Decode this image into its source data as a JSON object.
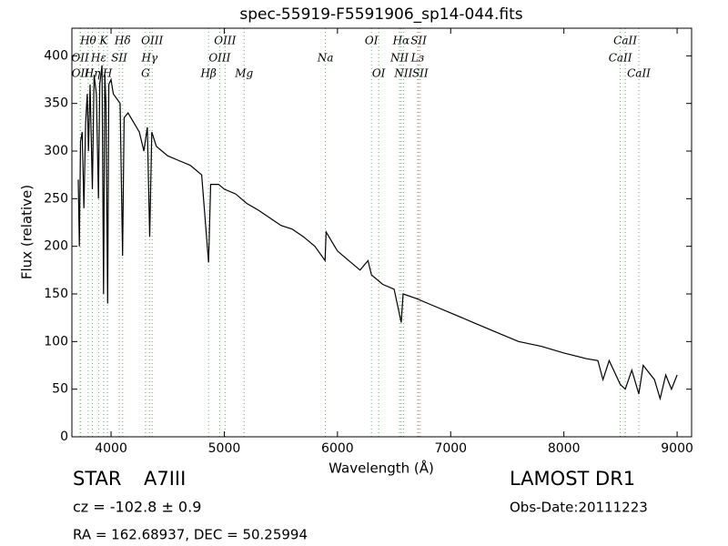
{
  "chart_data": {
    "type": "line",
    "title": "spec-55919-F5591906_sp14-044.fits",
    "xlabel": "Wavelength (Å)",
    "ylabel": "Flux (relative)",
    "color": "#000000",
    "line_color": "#5cb85c",
    "xlim": [
      3654,
      9128
    ],
    "ylim": [
      0,
      429
    ],
    "xticks": [
      4000,
      5000,
      6000,
      7000,
      8000,
      9000
    ],
    "yticks": [
      0,
      50,
      100,
      150,
      200,
      250,
      300,
      350,
      400
    ],
    "x": [
      3710,
      3720,
      3730,
      3745,
      3760,
      3775,
      3790,
      3800,
      3815,
      3835,
      3850,
      3870,
      3889,
      3900,
      3920,
      3934,
      3945,
      3955,
      3970,
      3980,
      4000,
      4020,
      4050,
      4080,
      4102,
      4115,
      4150,
      4200,
      4250,
      4290,
      4320,
      4341,
      4360,
      4400,
      4450,
      4500,
      4600,
      4700,
      4800,
      4861,
      4880,
      4950,
      5000,
      5100,
      5200,
      5300,
      5400,
      5500,
      5600,
      5700,
      5800,
      5890,
      5900,
      5950,
      6000,
      6100,
      6200,
      6270,
      6300,
      6400,
      6500,
      6563,
      6580,
      6700,
      6800,
      7000,
      7200,
      7400,
      7600,
      7800,
      8000,
      8200,
      8300,
      8345,
      8400,
      8498,
      8542,
      8600,
      8662,
      8700,
      8800,
      8850,
      8900,
      8950,
      9000
    ],
    "values": [
      270,
      200,
      310,
      320,
      240,
      330,
      360,
      300,
      370,
      260,
      380,
      360,
      250,
      370,
      390,
      150,
      380,
      350,
      140,
      370,
      375,
      360,
      355,
      350,
      190,
      335,
      340,
      330,
      320,
      300,
      325,
      210,
      320,
      305,
      300,
      295,
      290,
      285,
      275,
      183,
      265,
      265,
      260,
      255,
      245,
      238,
      230,
      222,
      218,
      210,
      200,
      185,
      215,
      205,
      195,
      185,
      175,
      185,
      170,
      160,
      155,
      120,
      150,
      145,
      140,
      130,
      120,
      110,
      100,
      95,
      88,
      82,
      80,
      60,
      80,
      55,
      50,
      70,
      45,
      75,
      60,
      40,
      65,
      50,
      65
    ],
    "line_labels": [
      [
        {
          "label": "Hθ",
          "wavelength": 3798
        },
        {
          "label": "K",
          "wavelength": 3934
        },
        {
          "label": "Hδ",
          "wavelength": 4102
        },
        {
          "label": "OIII",
          "wavelength": 4363
        },
        {
          "label": "OIII",
          "wavelength": 5007
        },
        {
          "label": "OI",
          "wavelength": 6300
        },
        {
          "label": "Hα",
          "wavelength": 6563
        },
        {
          "label": "SII",
          "wavelength": 6717
        },
        {
          "label": "CaII",
          "wavelength": 8542
        }
      ],
      [
        {
          "label": "OII",
          "wavelength": 3727
        },
        {
          "label": "Hε",
          "wavelength": 3890
        },
        {
          "label": "SII",
          "wavelength": 4072
        },
        {
          "label": "Hγ",
          "wavelength": 4340
        },
        {
          "label": "OIII",
          "wavelength": 4959
        },
        {
          "label": "Na",
          "wavelength": 5893
        },
        {
          "label": "NII",
          "wavelength": 6548
        },
        {
          "label": "Lз",
          "wavelength": 6708
        },
        {
          "label": "CaII",
          "wavelength": 8498
        }
      ],
      [
        {
          "label": "OII",
          "wavelength": 3729
        },
        {
          "label": "Hη",
          "wavelength": 3835
        },
        {
          "label": "H",
          "wavelength": 3968
        },
        {
          "label": "G",
          "wavelength": 4304
        },
        {
          "label": "Hβ",
          "wavelength": 4861
        },
        {
          "label": "Mg",
          "wavelength": 5175
        },
        {
          "label": "OI",
          "wavelength": 6364
        },
        {
          "label": "NII",
          "wavelength": 6583
        },
        {
          "label": "SII",
          "wavelength": 6731
        },
        {
          "label": "CaII",
          "wavelength": 8662
        }
      ]
    ],
    "info": {
      "class": "STAR",
      "subclass": "A7III",
      "survey": "LAMOST DR1",
      "cz": "cz = -102.8 ± 0.9",
      "date": "Obs-Date:20111223",
      "coords": "RA = 162.68937, DEC = 50.25994"
    }
  }
}
